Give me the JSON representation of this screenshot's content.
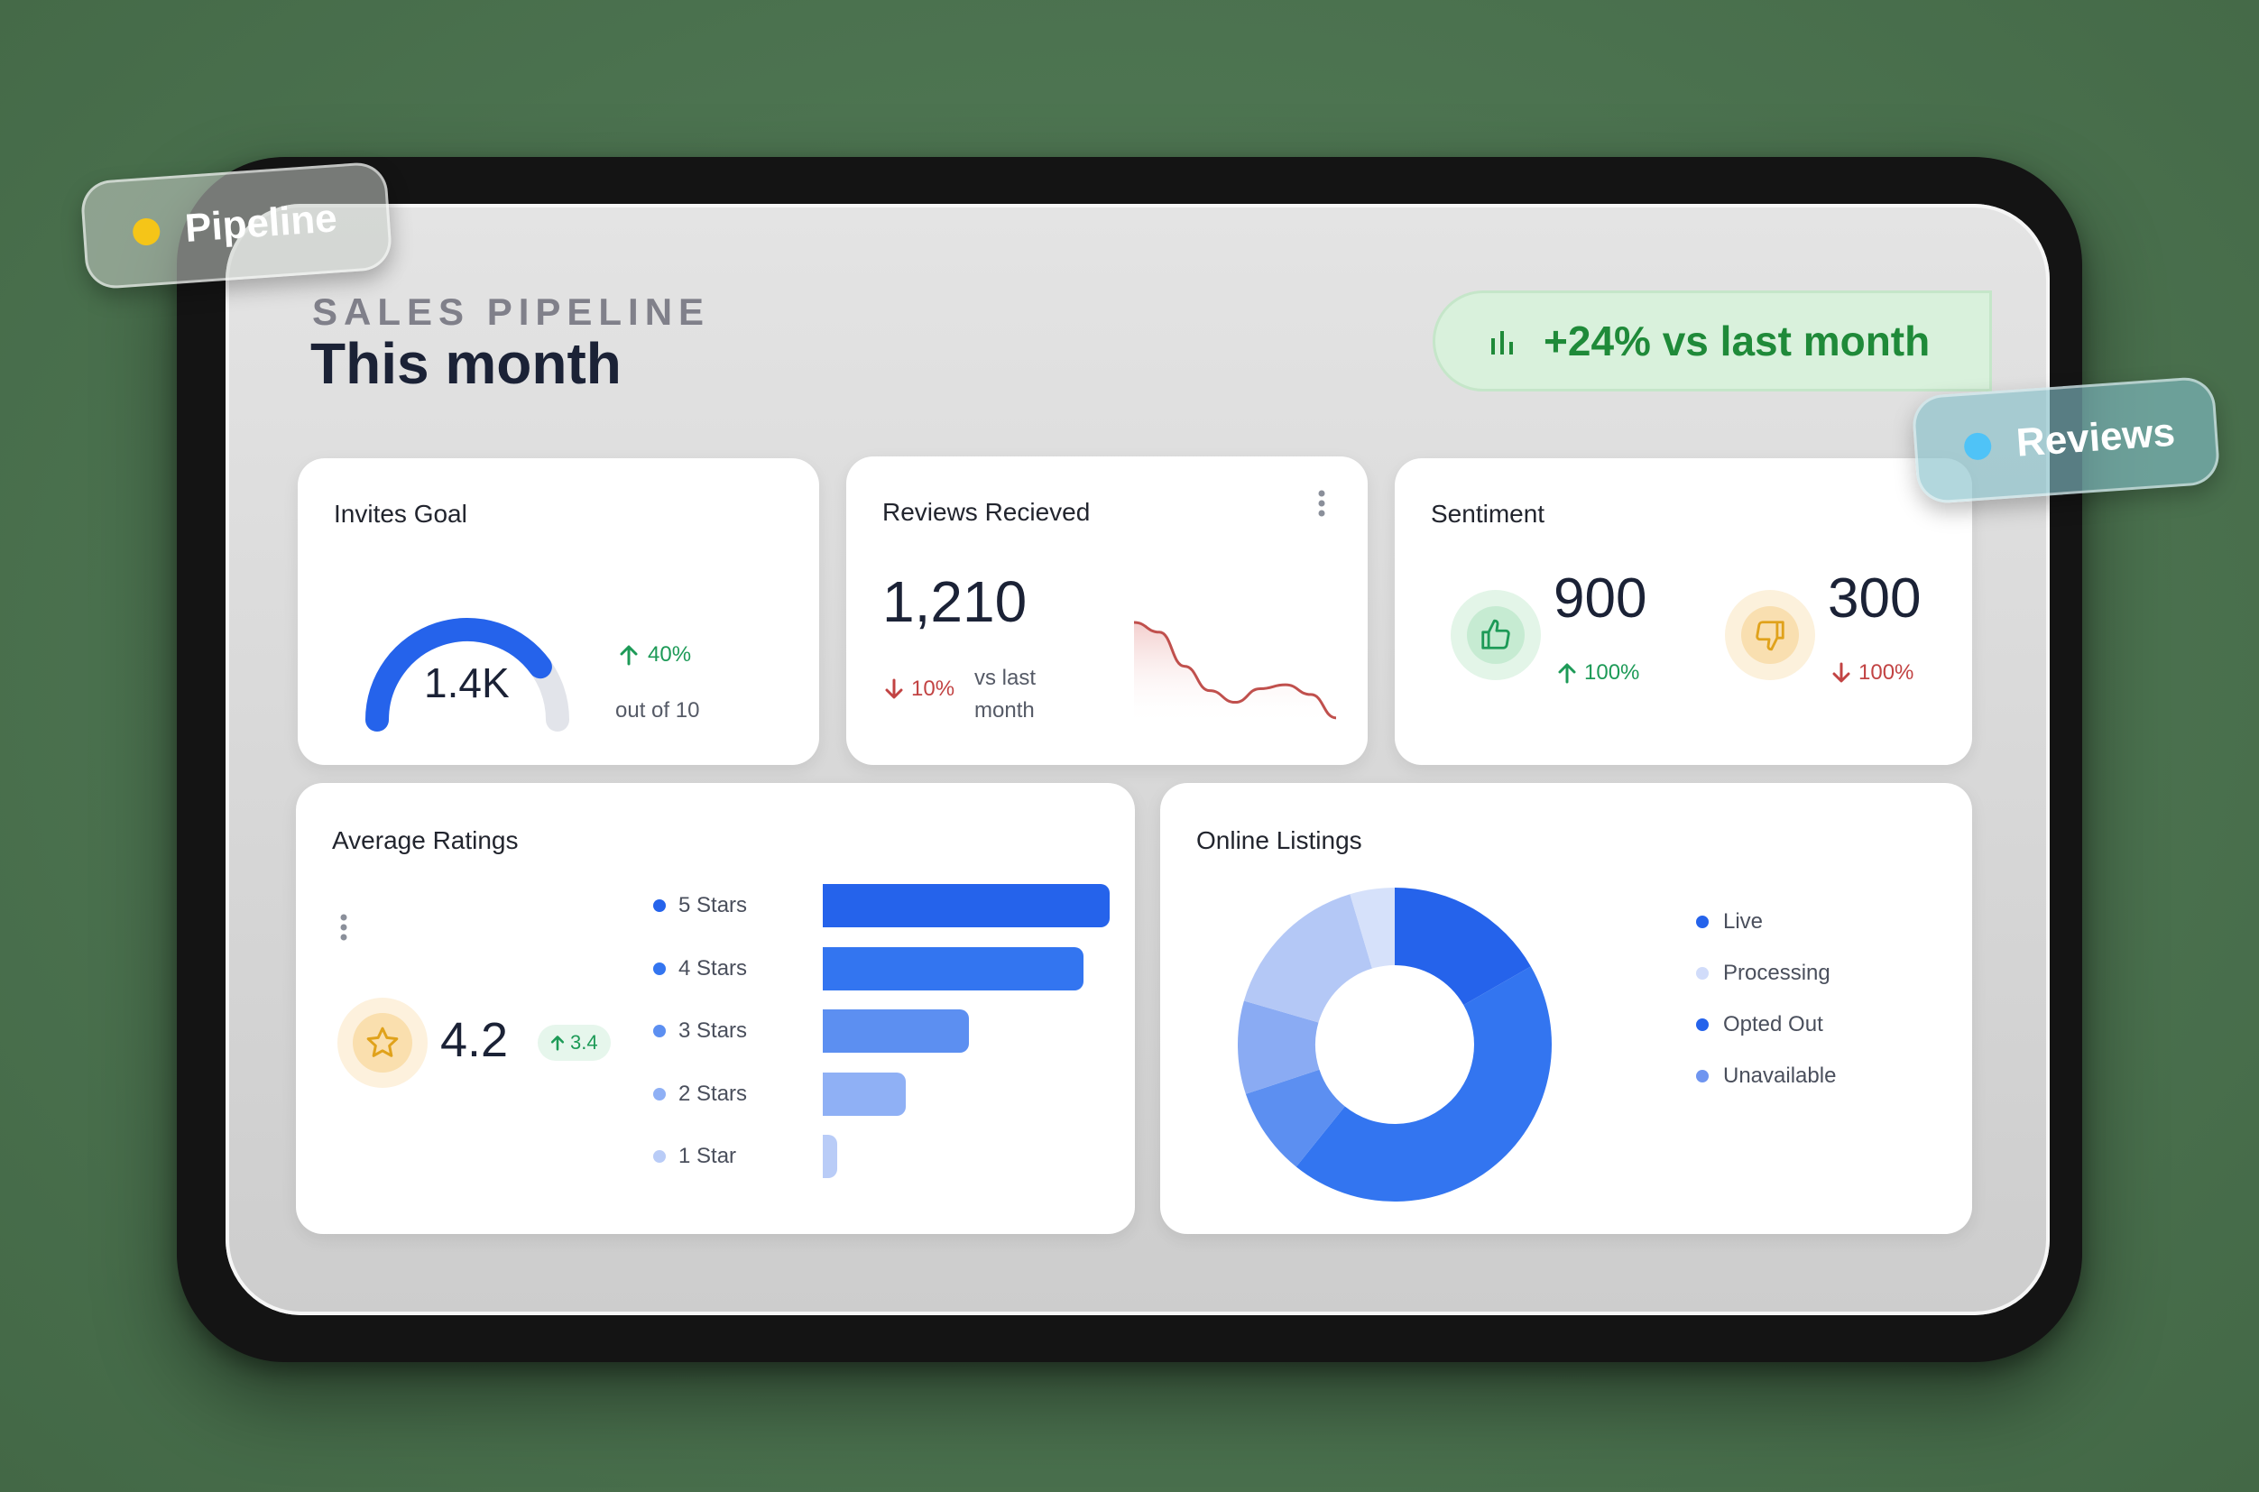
{
  "tags": {
    "pipeline": "Pipeline",
    "reviews": "Reviews"
  },
  "header": {
    "eyebrow": "SALES PIPELINE",
    "title": "This month",
    "trend_label": "+24% vs last month",
    "trend_icon": "bar-chart-icon"
  },
  "invites_goal": {
    "title": "Invites Goal",
    "value": "1.4K",
    "progress_fraction": 0.8,
    "change": "40%",
    "caption": "out of 10"
  },
  "reviews_received": {
    "title": "Reviews Recieved",
    "value": "1,210",
    "change": "10%",
    "caption_line1": "vs last",
    "caption_line2": "month"
  },
  "sentiment": {
    "title": "Sentiment",
    "positive": {
      "value": "900",
      "change": "100%"
    },
    "negative": {
      "value": "300",
      "change": "100%"
    }
  },
  "average_ratings": {
    "title": "Average Ratings",
    "value": "4.2",
    "change": "3.4"
  },
  "online_listings": {
    "title": "Online Listings",
    "legend": [
      "Live",
      "Processing",
      "Opted Out",
      "Unavailable"
    ]
  },
  "colors": {
    "accent_blue": "#2563eb",
    "positive_green": "#1d9a57",
    "negative_red": "#c24343",
    "tag_yellow": "#f5c518",
    "tag_cyan": "#4fc3f7"
  },
  "chart_data": [
    {
      "type": "bar",
      "orientation": "horizontal",
      "categories": [
        "5 Stars",
        "4 Stars",
        "3 Stars",
        "2 Stars",
        "1 Star"
      ],
      "values": [
        100,
        91,
        51,
        29,
        5
      ],
      "colors": [
        "#2563eb",
        "#3375f0",
        "#5c8ff1",
        "#8fb0f5",
        "#b9ccf7"
      ],
      "title": "",
      "xlabel": "",
      "ylabel": ""
    },
    {
      "type": "pie",
      "donut": true,
      "categories": [
        "Live",
        "Processing",
        "Opted Out",
        "Unavailable"
      ],
      "values": [
        16.7,
        4.6,
        44.1,
        34.6
      ],
      "series_breakdown": [
        {
          "label": "Live",
          "value": 16.7,
          "color": "#2563eb"
        },
        {
          "label": "Opted Out",
          "value": 44.1,
          "color": "#3375f0"
        },
        {
          "label": "Unavailable",
          "value": 9.1,
          "color": "#5c8ff1"
        },
        {
          "label": "Unavailable",
          "value": 9.6,
          "color": "#8aabf3"
        },
        {
          "label": "Unavailable",
          "value": 15.9,
          "color": "#b4c8f6"
        },
        {
          "label": "Processing",
          "value": 4.6,
          "color": "#d6e1fa"
        }
      ],
      "legend_colors": [
        "#2563eb",
        "#d1dcfa",
        "#2563eb",
        "#6f95f0"
      ]
    },
    {
      "type": "line",
      "title": "",
      "y": [
        1.0,
        0.9,
        0.55,
        0.3,
        0.18,
        0.32,
        0.36,
        0.26,
        0.02
      ],
      "color": "#c0504d"
    }
  ]
}
